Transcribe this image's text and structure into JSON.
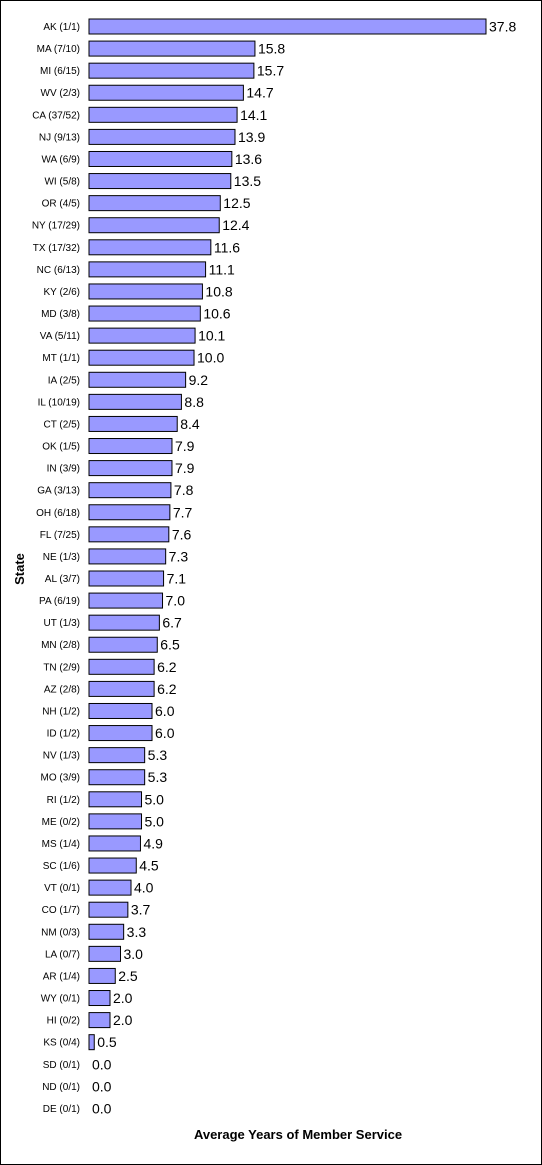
{
  "chart_data": {
    "type": "bar",
    "orientation": "horizontal",
    "title": "",
    "xlabel": "Average Years of Member Service",
    "ylabel": "State",
    "bar_color": "#9999ff",
    "bar_outline": "#000000",
    "grid": false,
    "legend": "none",
    "xlim": [
      0,
      37.8
    ],
    "categories": [
      "AK (1/1)",
      "MA (7/10)",
      "MI (6/15)",
      "WV (2/3)",
      "CA (37/52)",
      "NJ (9/13)",
      "WA (6/9)",
      "WI (5/8)",
      "OR (4/5)",
      "NY (17/29)",
      "TX (17/32)",
      "NC (6/13)",
      "KY (2/6)",
      "MD (3/8)",
      "VA (5/11)",
      "MT (1/1)",
      "IA (2/5)",
      "IL (10/19)",
      "CT (2/5)",
      "OK (1/5)",
      "IN (3/9)",
      "GA (3/13)",
      "OH (6/18)",
      "FL (7/25)",
      "NE (1/3)",
      "AL (3/7)",
      "PA (6/19)",
      "UT (1/3)",
      "MN (2/8)",
      "TN (2/9)",
      "AZ (2/8)",
      "NH (1/2)",
      "ID (1/2)",
      "NV (1/3)",
      "MO (3/9)",
      "RI (1/2)",
      "ME (0/2)",
      "MS (1/4)",
      "SC (1/6)",
      "VT (0/1)",
      "CO (1/7)",
      "NM (0/3)",
      "LA (0/7)",
      "AR (1/4)",
      "WY (0/1)",
      "HI (0/2)",
      "KS (0/4)",
      "SD (0/1)",
      "ND (0/1)",
      "DE (0/1)"
    ],
    "values": [
      37.8,
      15.8,
      15.7,
      14.7,
      14.1,
      13.9,
      13.6,
      13.5,
      12.5,
      12.4,
      11.6,
      11.1,
      10.8,
      10.6,
      10.1,
      10.0,
      9.2,
      8.8,
      8.4,
      7.9,
      7.9,
      7.8,
      7.7,
      7.6,
      7.3,
      7.1,
      7.0,
      6.7,
      6.5,
      6.2,
      6.2,
      6.0,
      6.0,
      5.3,
      5.3,
      5.0,
      5.0,
      4.9,
      4.5,
      4.0,
      3.7,
      3.3,
      3.0,
      2.5,
      2.0,
      2.0,
      0.5,
      0.0,
      0.0,
      0.0
    ],
    "value_labels": [
      "37.8",
      "15.8",
      "15.7",
      "14.7",
      "14.1",
      "13.9",
      "13.6",
      "13.5",
      "12.5",
      "12.4",
      "11.6",
      "11.1",
      "10.8",
      "10.6",
      "10.1",
      "10.0",
      "9.2",
      "8.8",
      "8.4",
      "7.9",
      "7.9",
      "7.8",
      "7.7",
      "7.6",
      "7.3",
      "7.1",
      "7.0",
      "6.7",
      "6.5",
      "6.2",
      "6.2",
      "6.0",
      "6.0",
      "5.3",
      "5.3",
      "5.0",
      "5.0",
      "4.9",
      "4.5",
      "4.0",
      "3.7",
      "3.3",
      "3.0",
      "2.5",
      "2.0",
      "2.0",
      "0.5",
      "0.0",
      "0.0",
      "0.0"
    ]
  }
}
